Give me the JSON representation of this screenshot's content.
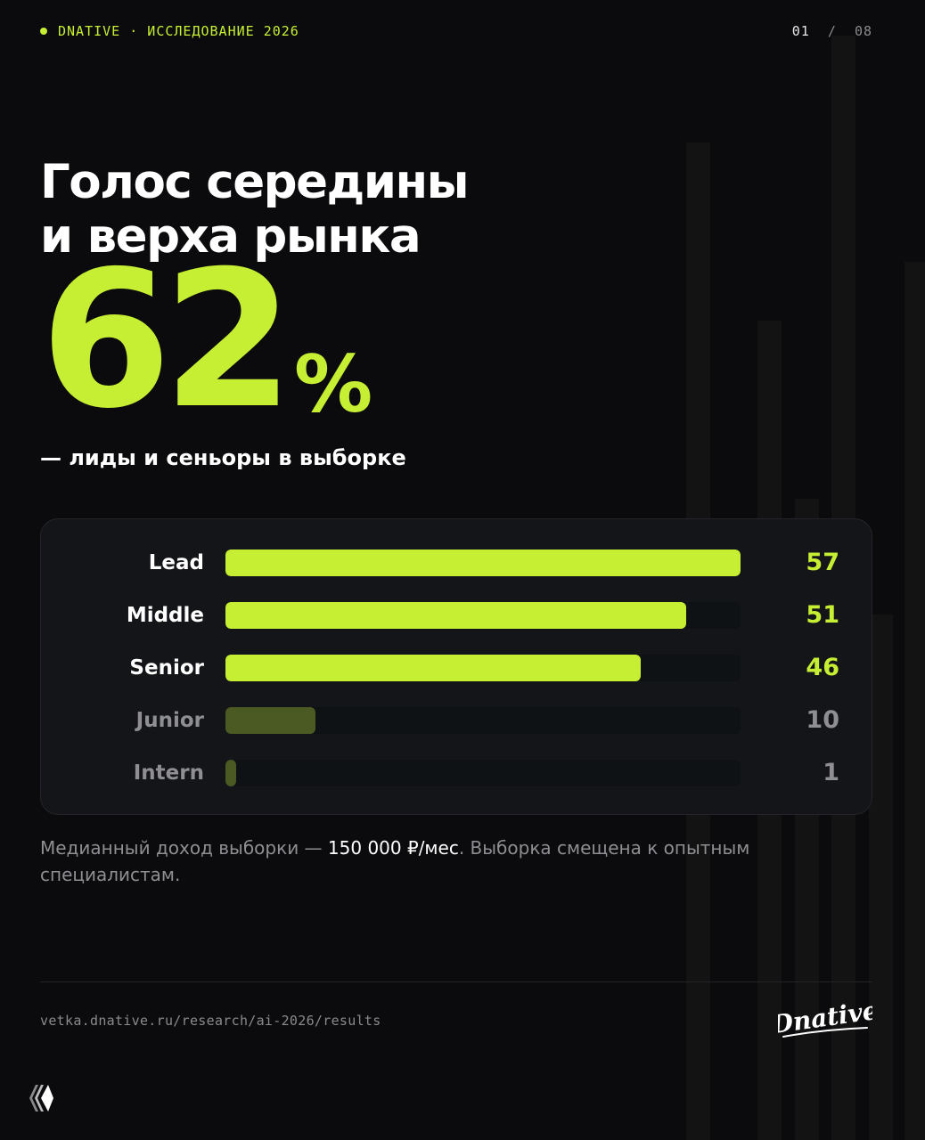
{
  "header": {
    "brand": "DNATIVE · ИССЛЕДОВАНИЕ 2026",
    "page_current": "01",
    "page_separator": "/",
    "page_total": "08"
  },
  "title_line1": "Голос середины",
  "title_line2": "и верха рынка",
  "highlight": {
    "value": "62",
    "unit": "%"
  },
  "subtitle": "— лиды и сеньоры в выборке",
  "chart_data": {
    "type": "bar",
    "orientation": "horizontal",
    "categories": [
      "Lead",
      "Middle",
      "Senior",
      "Junior",
      "Intern"
    ],
    "values": [
      57,
      51,
      46,
      10,
      1
    ],
    "xlim": [
      0,
      57
    ],
    "grid": false,
    "highlighted": [
      "Lead",
      "Middle",
      "Senior"
    ],
    "colors": {
      "accent": "#c6ef33",
      "muted": "#4a5a22",
      "track": "#0f1215",
      "label_primary": "#ffffff",
      "label_muted": "#8e8e93"
    }
  },
  "note": {
    "part1": "Медианный доход выборки — ",
    "highlight": "150 000 ₽/мес",
    "part2": ". Выборка смещена к опытным специалистам."
  },
  "footer": {
    "url": "vetka.dnative.ru/research/ai-2026/results",
    "logo_text": "Dnative"
  },
  "icons": {
    "brand_dot": "dot-icon",
    "corner": "chevron-stack-icon"
  }
}
